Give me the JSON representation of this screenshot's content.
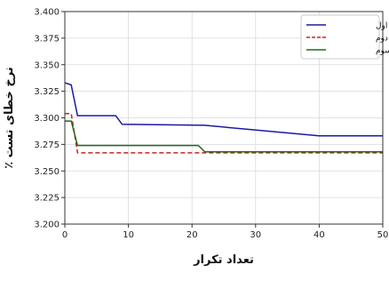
{
  "chart_data": {
    "type": "line",
    "xlabel": "تعداد تکرار",
    "ylabel": "نرخ خطای تست ٪",
    "xlim": [
      0,
      50
    ],
    "ylim": [
      3.2,
      3.4
    ],
    "xticks": [
      "0",
      "10",
      "20",
      "30",
      "40",
      "50"
    ],
    "yticks": [
      "3.200",
      "3.225",
      "3.250",
      "3.275",
      "3.300",
      "3.325",
      "3.350",
      "3.375",
      "3.400"
    ],
    "grid": true,
    "legend_position": "top-right",
    "series": [
      {
        "name": "اجرای اول",
        "color": "#1a1aa0",
        "style": "solid",
        "x": [
          0,
          1,
          2,
          8,
          9,
          22,
          40,
          50
        ],
        "y": [
          3.333,
          3.331,
          3.302,
          3.302,
          3.294,
          3.293,
          3.283,
          3.283
        ]
      },
      {
        "name": "اجرای دوم",
        "color": "#cc2222",
        "style": "dashed",
        "x": [
          0,
          1,
          2,
          50
        ],
        "y": [
          3.304,
          3.304,
          3.267,
          3.267
        ]
      },
      {
        "name": "اجرای سوم",
        "color": "#1e6b1e",
        "style": "solid",
        "x": [
          0,
          1,
          2,
          21,
          22,
          50
        ],
        "y": [
          3.297,
          3.297,
          3.274,
          3.274,
          3.268,
          3.268
        ]
      }
    ]
  }
}
